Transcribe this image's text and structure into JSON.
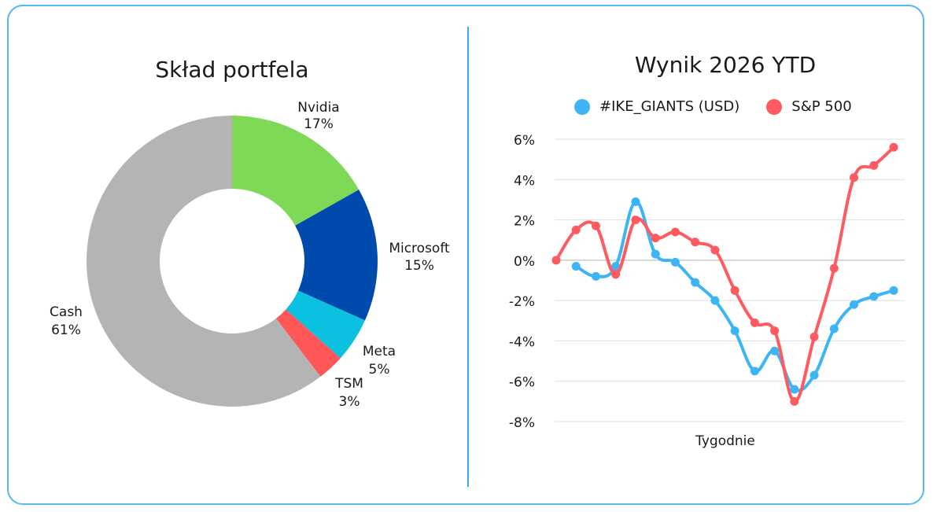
{
  "chart_data": [
    {
      "type": "pie",
      "variant": "donut",
      "title": "Skład portfela",
      "slices": [
        {
          "label": "Nvidia",
          "pct_label": "17%",
          "value": 17,
          "color": "#7ed957"
        },
        {
          "label": "Microsoft",
          "pct_label": "15%",
          "value": 15,
          "color": "#004aad"
        },
        {
          "label": "Meta",
          "pct_label": "5%",
          "value": 5,
          "color": "#0cc0df"
        },
        {
          "label": "TSM",
          "pct_label": "3%",
          "value": 3,
          "color": "#ff5757"
        },
        {
          "label": "Cash",
          "pct_label": "61%",
          "value": 61,
          "color": "#b4b4b4"
        }
      ]
    },
    {
      "type": "line",
      "title": "Wynik 2026 YTD",
      "xlabel": "Tygodnie",
      "ylabel": "",
      "ylim": [
        -8,
        6
      ],
      "yticks": [
        {
          "value": 6,
          "label": "6%"
        },
        {
          "value": 4,
          "label": "4%"
        },
        {
          "value": 2,
          "label": "2%"
        },
        {
          "value": 0,
          "label": "0%"
        },
        {
          "value": -2,
          "label": "-2%"
        },
        {
          "value": -4,
          "label": "-4%"
        },
        {
          "value": -6,
          "label": "-6%"
        },
        {
          "value": -8,
          "label": "-8%"
        }
      ],
      "grid": true,
      "legend_position": "top",
      "x": [
        1,
        2,
        3,
        4,
        5,
        6,
        7,
        8,
        9,
        10,
        11,
        12,
        13,
        14,
        15,
        16,
        17,
        18
      ],
      "series": [
        {
          "name": "#IKE_GIANTS (USD)",
          "color": "#3db5f5",
          "values": [
            null,
            -0.3,
            -0.8,
            -0.3,
            2.9,
            0.3,
            -0.1,
            -1.1,
            -2.0,
            -3.5,
            -5.5,
            -4.5,
            -6.4,
            -5.7,
            -3.4,
            -2.2,
            -1.8,
            -1.5
          ]
        },
        {
          "name": "S&P 500",
          "color": "#ff5a5f",
          "values": [
            0.0,
            1.5,
            1.7,
            -0.7,
            2.0,
            1.1,
            1.4,
            0.9,
            0.5,
            -1.5,
            -3.1,
            -3.5,
            -7.0,
            -3.8,
            -0.4,
            4.1,
            4.7,
            5.6
          ]
        }
      ]
    }
  ]
}
